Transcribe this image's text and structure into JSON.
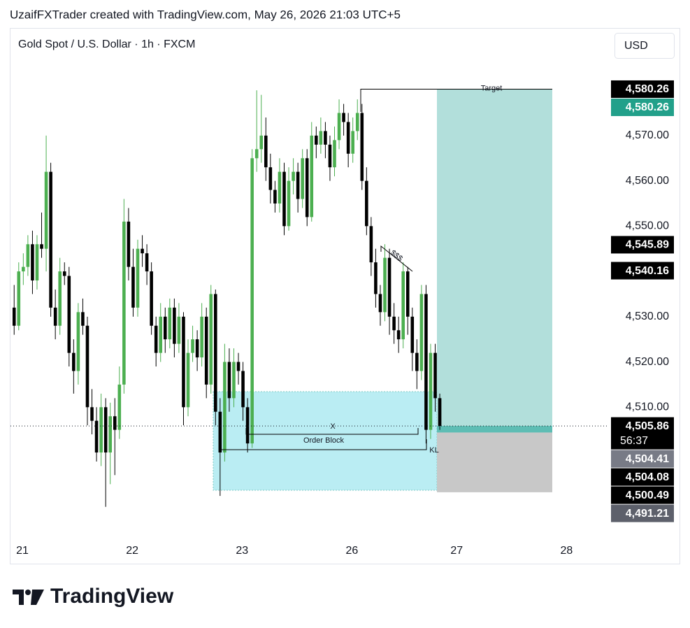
{
  "header": {
    "credit": "UzaifFXTrader created with TradingView.com, May 26, 2026 21:03 UTC+5"
  },
  "footer": {
    "logo_text": "TradingView"
  },
  "chart_data": {
    "type": "candlestick",
    "title": "Gold Spot / U.S. Dollar · 1h · FXCM",
    "currency": "USD",
    "up_color": "#4caf50",
    "down_color": "#000000",
    "xlim": [
      -0.8,
      129.8
    ],
    "xticks": [
      {
        "value": 1.8,
        "label": "21"
      },
      {
        "value": 25.8,
        "label": "22"
      },
      {
        "value": 49.8,
        "label": "23"
      },
      {
        "value": 73.8,
        "label": "26"
      },
      {
        "value": 96.7,
        "label": "27"
      },
      {
        "value": 120.7,
        "label": "28"
      }
    ],
    "ylim": [
      4481,
      4593
    ],
    "yticks": [
      {
        "value": 4510,
        "label": "4,510.00"
      },
      {
        "value": 4520,
        "label": "4,520.00"
      },
      {
        "value": 4530,
        "label": "4,530.00"
      },
      {
        "value": 4540,
        "label": "4,540.00"
      },
      {
        "value": 4550,
        "label": "4,550.00"
      },
      {
        "value": 4560,
        "label": "4,560.00"
      },
      {
        "value": 4570,
        "label": "4,570.00"
      }
    ],
    "candles": [
      [
        4532,
        4537,
        4526,
        4528
      ],
      [
        4528,
        4542,
        4527,
        4540
      ],
      [
        4540,
        4544,
        4537,
        4541
      ],
      [
        4541,
        4548,
        4539,
        4546
      ],
      [
        4546,
        4549,
        4535,
        4538
      ],
      [
        4538,
        4548,
        4536,
        4546
      ],
      [
        4546,
        4553,
        4543,
        4545
      ],
      [
        4545,
        4570,
        4540,
        4562
      ],
      [
        4562,
        4564,
        4530,
        4532
      ],
      [
        4532,
        4536,
        4525,
        4528
      ],
      [
        4528,
        4543,
        4526,
        4540
      ],
      [
        4540,
        4542,
        4537,
        4539
      ],
      [
        4539,
        4541,
        4519,
        4522
      ],
      [
        4522,
        4525,
        4513,
        4518
      ],
      [
        4518,
        4533,
        4515,
        4531
      ],
      [
        4531,
        4534,
        4526,
        4528
      ],
      [
        4528,
        4530,
        4506,
        4510
      ],
      [
        4510,
        4514,
        4504,
        4507
      ],
      [
        4507,
        4510,
        4498,
        4500
      ],
      [
        4500,
        4513,
        4497,
        4510
      ],
      [
        4510,
        4512,
        4488,
        4500
      ],
      [
        4500,
        4511,
        4493,
        4508
      ],
      [
        4508,
        4512,
        4495,
        4505
      ],
      [
        4505,
        4519,
        4503,
        4515
      ],
      [
        4515,
        4556,
        4513,
        4551
      ],
      [
        4551,
        4554,
        4538,
        4541
      ],
      [
        4541,
        4545,
        4530,
        4532
      ],
      [
        4532,
        4547,
        4530,
        4545
      ],
      [
        4545,
        4548,
        4541,
        4544
      ],
      [
        4544,
        4546,
        4537,
        4540
      ],
      [
        4540,
        4542,
        4526,
        4528
      ],
      [
        4528,
        4530,
        4519,
        4522
      ],
      [
        4522,
        4533,
        4520,
        4530
      ],
      [
        4530,
        4532,
        4522,
        4525
      ],
      [
        4525,
        4534,
        4523,
        4532
      ],
      [
        4532,
        4534,
        4521,
        4524
      ],
      [
        4524,
        4533,
        4522,
        4530
      ],
      [
        4530,
        4531,
        4506,
        4510
      ],
      [
        4510,
        4525,
        4508,
        4522
      ],
      [
        4522,
        4528,
        4520,
        4525
      ],
      [
        4525,
        4527,
        4518,
        4521
      ],
      [
        4521,
        4533,
        4519,
        4530
      ],
      [
        4530,
        4532,
        4512,
        4515
      ],
      [
        4515,
        4537,
        4513,
        4535
      ],
      [
        4535,
        4536,
        4506,
        4509
      ],
      [
        4509,
        4512,
        4490.4,
        4500
      ],
      [
        4500,
        4524,
        4498,
        4520
      ],
      [
        4520,
        4523,
        4509,
        4512
      ],
      [
        4512,
        4523,
        4510,
        4520
      ],
      [
        4520,
        4522,
        4515,
        4518
      ],
      [
        4518,
        4520,
        4507,
        4510
      ],
      [
        4510,
        4512,
        4500,
        4502
      ],
      [
        4502,
        4567,
        4501,
        4565
      ],
      [
        4565,
        4580,
        4562,
        4567
      ],
      [
        4567,
        4579,
        4564,
        4570
      ],
      [
        4570,
        4574,
        4560,
        4563
      ],
      [
        4563,
        4566,
        4555,
        4558
      ],
      [
        4558,
        4560,
        4553,
        4555
      ],
      [
        4555,
        4565,
        4553,
        4562
      ],
      [
        4562,
        4564,
        4548,
        4550
      ],
      [
        4550,
        4563,
        4549,
        4560
      ],
      [
        4560,
        4565,
        4557,
        4562
      ],
      [
        4562,
        4564,
        4553,
        4556
      ],
      [
        4556,
        4567,
        4554,
        4565
      ],
      [
        4565,
        4567,
        4550,
        4552
      ],
      [
        4552,
        4573,
        4551,
        4570
      ],
      [
        4570,
        4572,
        4565,
        4568
      ],
      [
        4568,
        4574,
        4566,
        4571
      ],
      [
        4571,
        4573,
        4565,
        4568
      ],
      [
        4568,
        4570,
        4560,
        4563
      ],
      [
        4563,
        4572,
        4561,
        4569
      ],
      [
        4569,
        4578,
        4567,
        4575
      ],
      [
        4575,
        4577,
        4570,
        4573
      ],
      [
        4573,
        4575,
        4563,
        4566
      ],
      [
        4566,
        4574,
        4564,
        4571
      ],
      [
        4571,
        4578,
        4569,
        4575
      ],
      [
        4575,
        4577,
        4558,
        4560
      ],
      [
        4560,
        4563,
        4548,
        4550
      ],
      [
        4550,
        4552,
        4539,
        4542
      ],
      [
        4542,
        4545,
        4532,
        4535
      ],
      [
        4535,
        4537,
        4528,
        4531
      ],
      [
        4531,
        4546,
        4529,
        4543
      ],
      [
        4543,
        4545,
        4526,
        4530
      ],
      [
        4530,
        4533,
        4524,
        4527
      ],
      [
        4527,
        4530,
        4522,
        4525
      ],
      [
        4525,
        4542,
        4523,
        4540
      ],
      [
        4540,
        4541,
        4526,
        4530
      ],
      [
        4530,
        4532,
        4518,
        4522
      ],
      [
        4522,
        4525,
        4514,
        4518
      ],
      [
        4518,
        4537,
        4516,
        4535
      ],
      [
        4535,
        4537,
        4502,
        4505
      ],
      [
        4505,
        4524,
        4503,
        4522
      ],
      [
        4522,
        4524,
        4509,
        4512
      ],
      [
        4512,
        4513,
        4505,
        4505.86
      ]
    ],
    "price_labels": [
      {
        "value": 4580.26,
        "label": "4,580.26",
        "color": "#000000"
      },
      {
        "value": 4580.26,
        "label": "4,580.26",
        "color": "#22a08a"
      },
      {
        "value": 4545.89,
        "label": "4,545.89",
        "color": "#000000"
      },
      {
        "value": 4540.16,
        "label": "4,540.16",
        "color": "#000000"
      },
      {
        "value": 4505.86,
        "label": "4,505.86",
        "color": "#000000",
        "countdown": "56:37"
      },
      {
        "value": 4504.41,
        "label": "4,504.41",
        "color": "#787b86"
      },
      {
        "value": 4504.08,
        "label": "4,504.08",
        "color": "#000000"
      },
      {
        "value": 4500.49,
        "label": "4,500.49",
        "color": "#000000"
      },
      {
        "value": 4491.21,
        "label": "4,491.21",
        "color": "#5d606b"
      }
    ],
    "annotations": {
      "target": "Target",
      "x_mark": "X",
      "order_block": "Order Block",
      "key_level": "KL",
      "liquidity": "$$$"
    }
  }
}
